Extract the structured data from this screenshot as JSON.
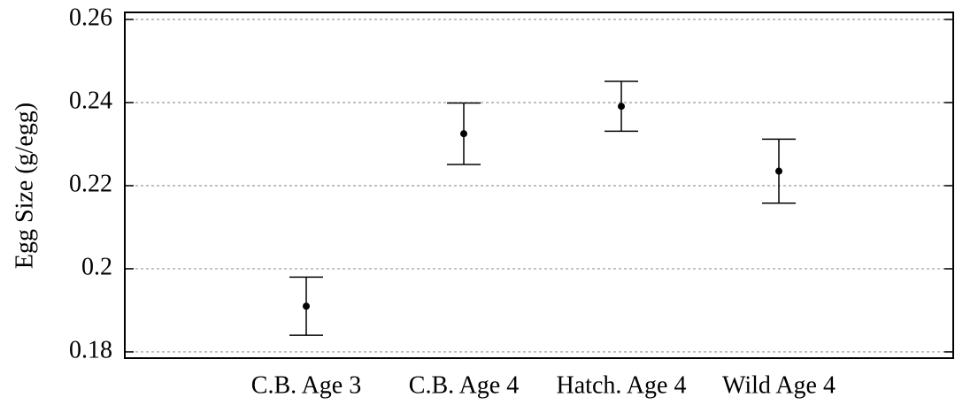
{
  "chart_data": {
    "type": "errorbar",
    "y_label": "Egg Size (g/egg)",
    "categories": [
      "C.B. Age 3",
      "C.B. Age 4",
      "Hatch. Age 4",
      "Wild Age 4"
    ],
    "values": [
      0.191,
      0.2325,
      0.2391,
      0.2235
    ],
    "errors": [
      0.007,
      0.0074,
      0.006,
      0.0077
    ],
    "color": "#000000",
    "ylim": [
      0.1785,
      0.2617
    ],
    "yticks": [
      0.26,
      0.24,
      0.22,
      0.2,
      0.18
    ],
    "grid": true
  }
}
